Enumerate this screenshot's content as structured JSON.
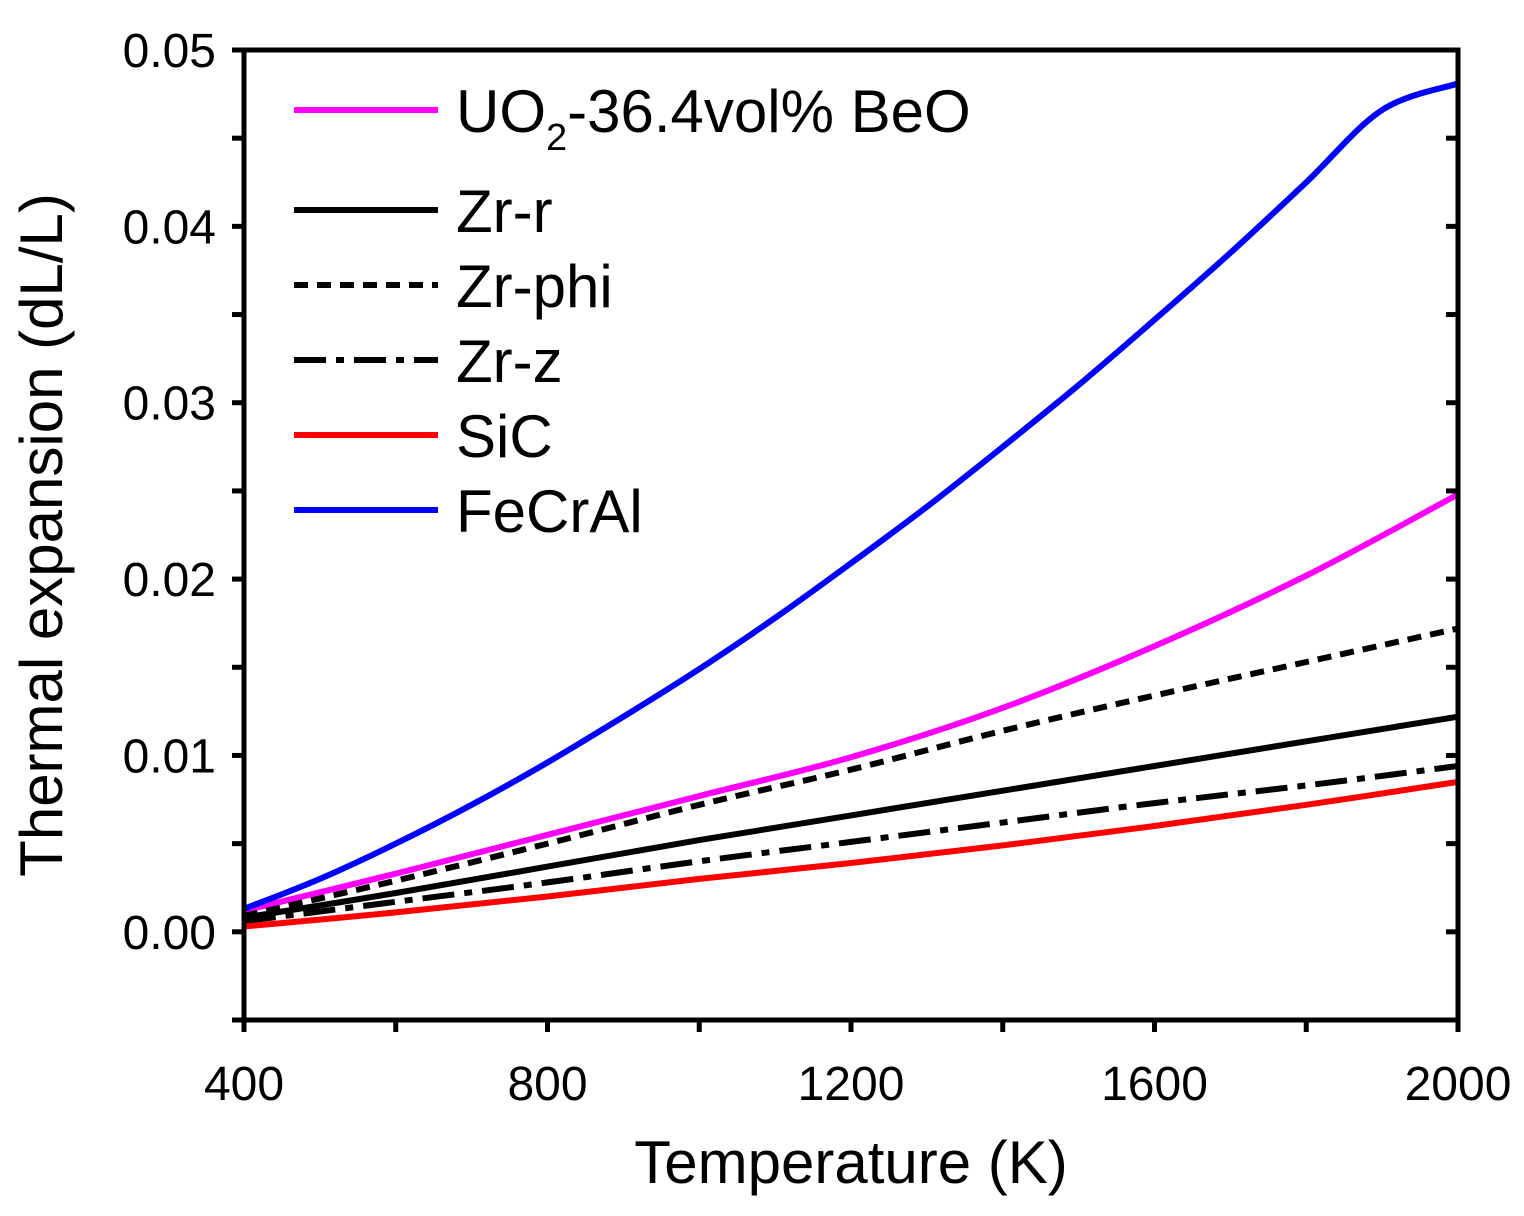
{
  "chart_data": {
    "type": "line",
    "title": "",
    "xlabel": "Temperature (K)",
    "ylabel": "Thermal expansion (dL/L)",
    "xlim": [
      400,
      2000
    ],
    "ylim": [
      -0.005,
      0.05
    ],
    "xticks": [
      400,
      800,
      1200,
      1600,
      2000
    ],
    "xtick_labels": [
      "400",
      "800",
      "1200",
      "1600",
      "2000"
    ],
    "yticks": [
      0.0,
      0.01,
      0.02,
      0.03,
      0.04,
      0.05
    ],
    "ytick_labels": [
      "0.00",
      "0.01",
      "0.02",
      "0.03",
      "0.04",
      "0.05"
    ],
    "grid": false,
    "legend_position": "top-left",
    "series": [
      {
        "name": "UO2-36.4vol% BeO",
        "legend_main": "UO",
        "legend_sub": "2",
        "legend_rest": "-36.4vol% BeO",
        "color": "#ff00ff",
        "style": "solid",
        "x": [
          400,
          600,
          800,
          1000,
          1200,
          1400,
          1600,
          1800,
          2000
        ],
        "values": [
          0.0012,
          0.0033,
          0.0055,
          0.0077,
          0.0099,
          0.0127,
          0.0162,
          0.0202,
          0.0248
        ]
      },
      {
        "name": "Zr-r",
        "color": "#000000",
        "style": "solid",
        "x": [
          400,
          600,
          800,
          1000,
          1200,
          1400,
          1600,
          1800,
          2000
        ],
        "values": [
          0.0008,
          0.0022,
          0.0037,
          0.0052,
          0.0066,
          0.008,
          0.0094,
          0.0108,
          0.0122
        ]
      },
      {
        "name": "Zr-phi",
        "color": "#000000",
        "style": "dash",
        "x": [
          400,
          600,
          800,
          1000,
          1200,
          1400,
          1600,
          1800,
          2000
        ],
        "values": [
          0.0009,
          0.0029,
          0.005,
          0.0072,
          0.0092,
          0.0114,
          0.0134,
          0.0153,
          0.0172
        ]
      },
      {
        "name": "Zr-z",
        "color": "#000000",
        "style": "dashdot",
        "x": [
          400,
          600,
          800,
          1000,
          1200,
          1400,
          1600,
          1800,
          2000
        ],
        "values": [
          0.0006,
          0.0017,
          0.0028,
          0.004,
          0.0051,
          0.0062,
          0.0073,
          0.0083,
          0.0094
        ]
      },
      {
        "name": "SiC",
        "color": "#ff0000",
        "style": "solid",
        "x": [
          400,
          600,
          800,
          1000,
          1200,
          1400,
          1600,
          1800,
          2000
        ],
        "values": [
          0.0003,
          0.0011,
          0.002,
          0.003,
          0.0039,
          0.0049,
          0.006,
          0.0072,
          0.0085
        ]
      },
      {
        "name": "FeCrAl",
        "color": "#0000ff",
        "style": "solid",
        "x": [
          400,
          500,
          600,
          700,
          800,
          900,
          1000,
          1100,
          1200,
          1300,
          1400,
          1500,
          1600,
          1700,
          1800,
          1900,
          2000
        ],
        "values": [
          0.0013,
          0.003,
          0.005,
          0.0072,
          0.0096,
          0.0122,
          0.0149,
          0.0178,
          0.0209,
          0.0241,
          0.0275,
          0.031,
          0.0347,
          0.0385,
          0.0425,
          0.0466,
          0.0481
        ]
      }
    ]
  }
}
